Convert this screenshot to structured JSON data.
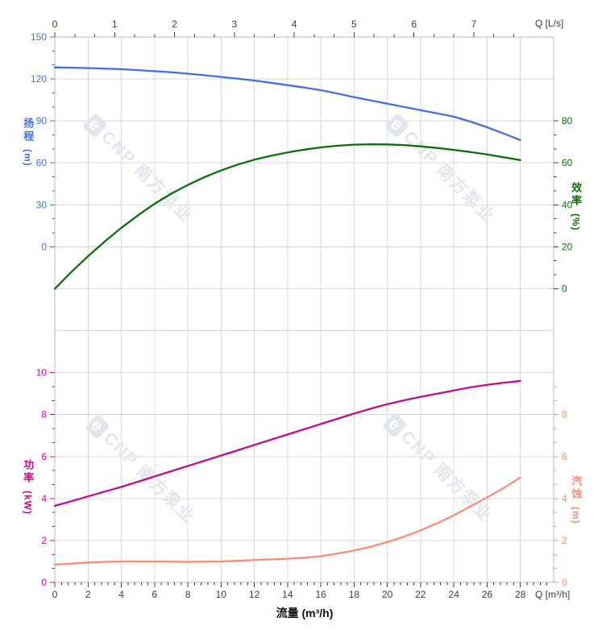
{
  "watermark": {
    "logo_glyph": "e",
    "text": "CNP 南方泵业"
  },
  "palette": {
    "grid": "#d9d9d9",
    "frame": "#bbbbbb",
    "axis_text": "#3c3c3c",
    "watermark": "#e2e6ee"
  },
  "chart_data": {
    "type": "line",
    "title": "",
    "x_unit": "m³/h",
    "x_start": 0,
    "x_step": 1,
    "x_end": 28,
    "series": [
      {
        "name": "扬程",
        "unit": "m",
        "axis": "head",
        "values": [
          128.3,
          128.1,
          127.8,
          127.4,
          127,
          126.3,
          125.6,
          124.8,
          123.8,
          122.7,
          121.5,
          120.2,
          118.9,
          117.3,
          115.6,
          113.9,
          112,
          109.6,
          107,
          104.7,
          102.3,
          100,
          97.7,
          95.4,
          93,
          89.5,
          85.5,
          81,
          76.3
        ]
      },
      {
        "name": "效率",
        "unit": "%",
        "axis": "eff",
        "values": [
          0,
          8,
          15.5,
          22.5,
          29,
          35,
          40.5,
          45.3,
          49.5,
          53.2,
          56.4,
          59.2,
          61.5,
          63.4,
          65,
          66.3,
          67.4,
          68.2,
          68.7,
          68.9,
          68.8,
          68.5,
          67.9,
          67.1,
          66.2,
          65.2,
          64,
          62.7,
          61.3
        ]
      },
      {
        "name": "功率",
        "unit": "kW",
        "axis": "power",
        "values": [
          3.65,
          3.87,
          4.1,
          4.33,
          4.55,
          4.8,
          5.05,
          5.3,
          5.55,
          5.8,
          6.05,
          6.3,
          6.55,
          6.8,
          7.05,
          7.3,
          7.55,
          7.8,
          8.05,
          8.28,
          8.5,
          8.68,
          8.85,
          9,
          9.15,
          9.3,
          9.42,
          9.52,
          9.6
        ]
      },
      {
        "name": "汽蚀",
        "unit": "m",
        "axis": "npsh",
        "values": [
          0.85,
          0.9,
          0.95,
          0.98,
          1,
          1,
          1,
          0.99,
          0.98,
          0.99,
          1,
          1.03,
          1.07,
          1.1,
          1.13,
          1.18,
          1.25,
          1.37,
          1.52,
          1.7,
          1.92,
          2.18,
          2.48,
          2.82,
          3.2,
          3.62,
          4.05,
          4.5,
          5
        ]
      }
    ],
    "axes": {
      "top": {
        "label": "Q [L/s]",
        "ticks": [
          0,
          1,
          2,
          3,
          4,
          5,
          6,
          7
        ],
        "minor_step": 0.3333,
        "minor_max": 7.68,
        "to_m3h": 3.6
      },
      "bottom": {
        "label": "Q [m³/h]",
        "title": "流量 (m³/h)",
        "ticks": [
          0,
          2,
          4,
          6,
          8,
          10,
          12,
          14,
          16,
          18,
          20,
          22,
          24,
          26,
          28
        ],
        "minor_step": 0.4,
        "minor_max": 29.6
      },
      "head": {
        "label": "扬程",
        "unit": "(m)",
        "side": "left",
        "color": "#4470e0",
        "zero_row": 5,
        "units_per_row": 30,
        "ticks": [
          150,
          120,
          90,
          60,
          30,
          0
        ],
        "minor_step": 10,
        "minor_min": 0,
        "minor_max": 150
      },
      "eff": {
        "label": "效率",
        "unit": "(%)",
        "side": "right",
        "color": "#0b6e0b",
        "zero_row": 6,
        "units_per_row": 20,
        "ticks": [
          80,
          60,
          40,
          20,
          0
        ],
        "minor_step": 6.6667,
        "minor_min": 0,
        "minor_max": 80
      },
      "power": {
        "label": "功率",
        "unit": "(kW)",
        "side": "left",
        "color": "#c40d8c",
        "zero_row": 13,
        "units_per_row": 2,
        "ticks": [
          10,
          8,
          6,
          4,
          2,
          0
        ],
        "minor_step": 0.6667,
        "minor_min": 0,
        "minor_max": 10
      },
      "npsh": {
        "label": "汽蚀",
        "unit": "(m)",
        "side": "right",
        "color": "#f98d77",
        "zero_row": 13,
        "units_per_row": 2,
        "ticks": [
          8,
          6,
          4,
          2,
          0
        ],
        "minor_step": 0.6667,
        "minor_min": 0,
        "minor_max": 9.4
      }
    },
    "grid": {
      "x_major_step": 2,
      "rows": 13
    }
  }
}
